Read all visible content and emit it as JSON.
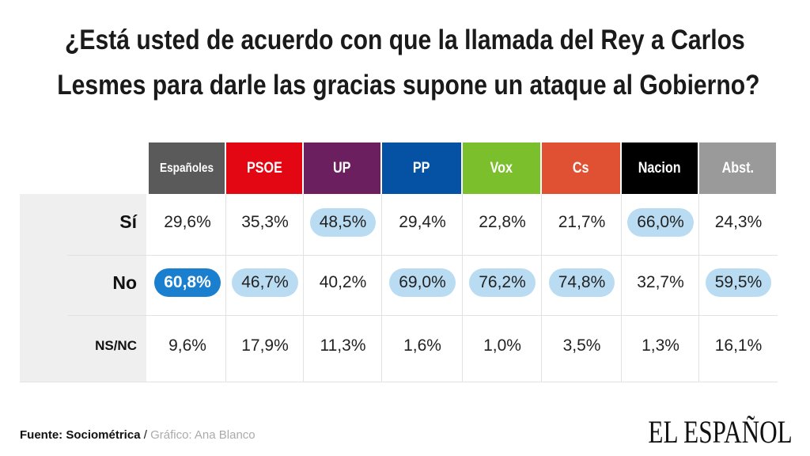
{
  "title_lines": [
    "¿Está usted de acuerdo con que la llamada del Rey  a Carlos",
    "Lesmes para darle las gracias supone un  ataque al Gobierno?"
  ],
  "chart_data": {
    "type": "table",
    "columns": [
      {
        "label": "Españoles",
        "color": "#5a5a5a"
      },
      {
        "label": "PSOE",
        "color": "#e30613"
      },
      {
        "label": "UP",
        "color": "#6b1f5e"
      },
      {
        "label": "PP",
        "color": "#0551a4"
      },
      {
        "label": "Vox",
        "color": "#7cbf2c"
      },
      {
        "label": "Cs",
        "color": "#e05133"
      },
      {
        "label": "Nacion",
        "color": "#000000"
      },
      {
        "label": "Abst.",
        "color": "#9a9a9a"
      }
    ],
    "rows": [
      {
        "label": "Sí",
        "values": [
          "29,6%",
          "35,3%",
          "48,5%",
          "29,4%",
          "22,8%",
          "21,7%",
          "66,0%",
          "24,3%"
        ],
        "highlight": [
          "none",
          "none",
          "light",
          "none",
          "none",
          "none",
          "light",
          "none"
        ]
      },
      {
        "label": "No",
        "values": [
          "60,8%",
          "46,7%",
          "40,2%",
          "69,0%",
          "76,2%",
          "74,8%",
          "32,7%",
          "59,5%"
        ],
        "highlight": [
          "strong",
          "light",
          "none",
          "light",
          "light",
          "light",
          "none",
          "light"
        ]
      },
      {
        "label": "NS/NC",
        "values": [
          "9,6%",
          "17,9%",
          "11,3%",
          "1,6%",
          "1,0%",
          "3,5%",
          "1,3%",
          "16,1%"
        ],
        "highlight": [
          "none",
          "none",
          "none",
          "none",
          "none",
          "none",
          "none",
          "none"
        ]
      }
    ],
    "highlight_colors": {
      "light": "#b9dcf2",
      "strong": "#1a7fcf"
    }
  },
  "footer": {
    "source": "Fuente: Sociométrica",
    "separator": " / ",
    "credit": "Gráfico: Ana Blanco"
  },
  "logo": "EL ESPAÑOL"
}
